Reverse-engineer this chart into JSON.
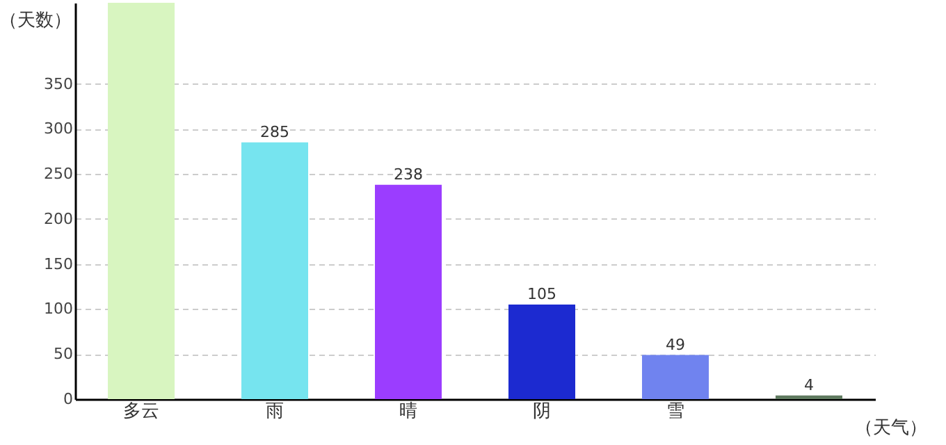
{
  "chart_data": {
    "type": "bar",
    "xlabel": "（天气）",
    "ylabel": "（天数）",
    "categories": [
      "多云",
      "雨",
      "晴",
      "阴",
      "雪",
      null
    ],
    "values": [
      440,
      285,
      238,
      105,
      49,
      4
    ],
    "value_labels": [
      null,
      "285",
      "238",
      "105",
      "49",
      "4"
    ],
    "colors": [
      "#d8f5c0",
      "#76e4ef",
      "#9b3dff",
      "#1c2ad0",
      "#7083ef",
      "#5f7a5f"
    ],
    "ylim": [
      0,
      440
    ],
    "yticks": [
      0,
      50,
      100,
      150,
      200,
      250,
      300,
      350
    ],
    "grid": "y"
  }
}
